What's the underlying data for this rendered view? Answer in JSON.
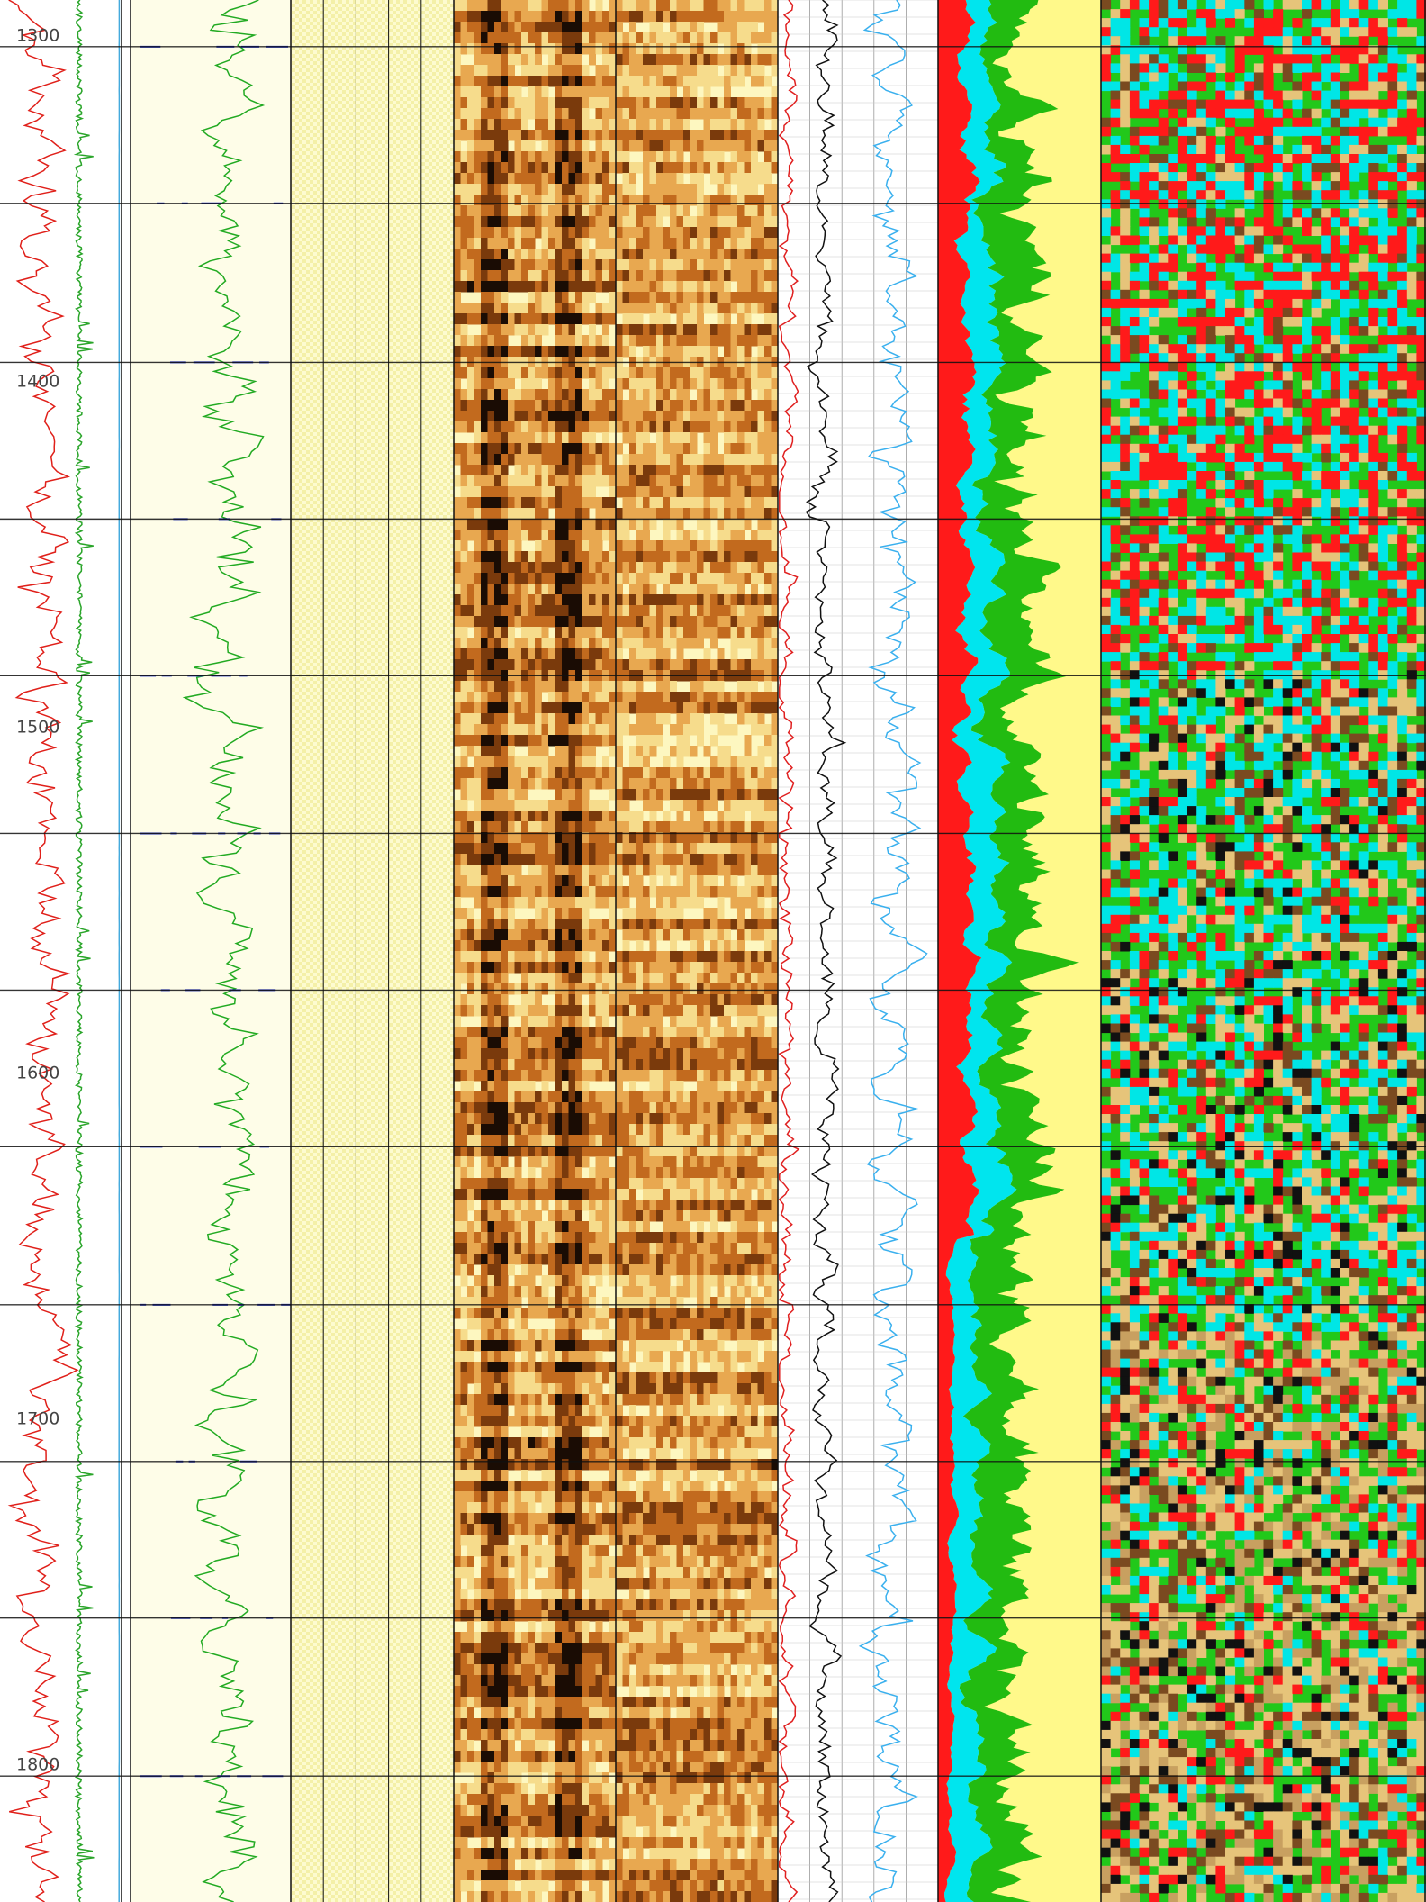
{
  "chart_data": {
    "type": "well-log",
    "depth_axis": {
      "range": [
        1290,
        1840
      ],
      "tick_labels": [
        "1300",
        "1400",
        "1500",
        "1600",
        "1700",
        "1800"
      ],
      "tick_values": [
        1300,
        1400,
        1500,
        1600,
        1700,
        1800
      ]
    },
    "zone_boundaries": [
      1303.5,
      1348.8,
      1394.8,
      1440.1,
      1485.4,
      1531.0,
      1576.3,
      1621.6,
      1667.3,
      1712.6,
      1757.9,
      1803.6
    ],
    "tracks": [
      {
        "id": "depth-track",
        "kind": "curves",
        "curves": [
          {
            "color": "#e0201a",
            "level": 0.35,
            "amp": 0.3,
            "style": "wiggle"
          },
          {
            "color": "#2aa52a",
            "level": 0.65,
            "amp": 0.05,
            "style": "spiky"
          },
          {
            "color": "#44aadd",
            "level": 0.98,
            "amp": 0.01,
            "style": "flat"
          }
        ]
      },
      {
        "id": "gamma-track",
        "kind": "curves",
        "background": "#fefde8",
        "curves": [
          {
            "color": "#22aa22",
            "level": 0.6,
            "amp": 0.3,
            "style": "wiggle"
          },
          {
            "color": "#2233cc",
            "level": 0.5,
            "amp": 0.4,
            "style": "dashes"
          }
        ]
      },
      {
        "id": "lithology-track",
        "kind": "pattern",
        "columns": 5,
        "background": "#fdfbd0"
      },
      {
        "id": "image-track-static",
        "kind": "image",
        "palette": "yellow-brown-black"
      },
      {
        "id": "image-track-dynamic",
        "kind": "image",
        "palette": "yellow-brown-black"
      },
      {
        "id": "resistivity-track",
        "kind": "curves",
        "grid": true,
        "curves": [
          {
            "color": "#e02020",
            "level": 0.05,
            "amp": 0.1,
            "style": "wiggle"
          },
          {
            "color": "#111111",
            "level": 0.3,
            "amp": 0.12,
            "style": "wiggle"
          },
          {
            "color": "#3ab0ee",
            "level": 0.72,
            "amp": 0.22,
            "style": "wiggle"
          }
        ]
      },
      {
        "id": "fluid-fill-track",
        "kind": "fill",
        "colors": [
          "#ff1a1a",
          "#00e5ee",
          "#22bb11",
          "#fff98a"
        ]
      },
      {
        "id": "facies-track",
        "kind": "facies",
        "colors": [
          "#e6c47a",
          "#c8a060",
          "#7a4a20",
          "#111111",
          "#22c81a",
          "#00e6e6",
          "#ff1a1a"
        ]
      }
    ]
  }
}
